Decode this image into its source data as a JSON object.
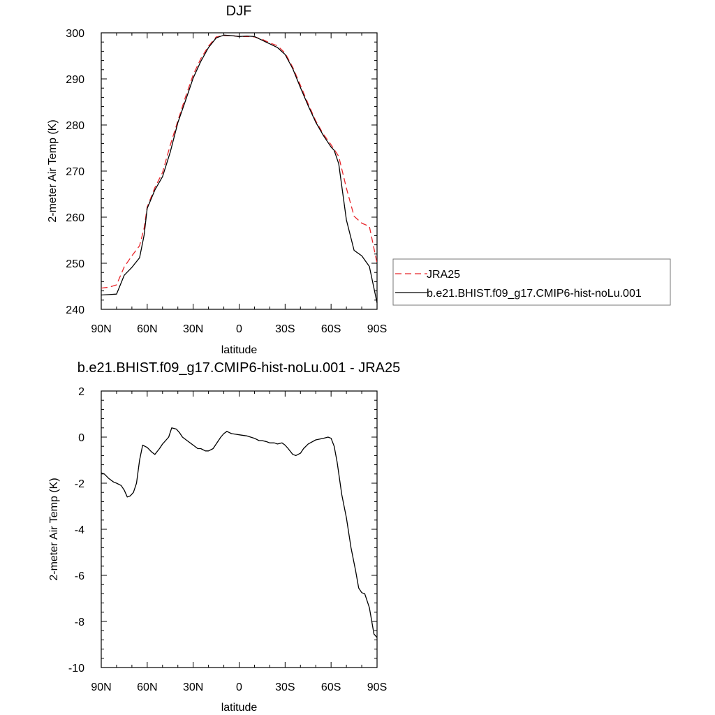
{
  "colors": {
    "reference": "#e8262b",
    "model": "#000000",
    "axis": "#000000"
  },
  "chart_data": [
    {
      "type": "line",
      "title": "DJF",
      "xlabel": "latitude",
      "ylabel": "2-meter Air Temp (K)",
      "xlim": [
        90,
        -90
      ],
      "ylim": [
        240,
        300
      ],
      "x_major_ticks": [
        90,
        60,
        30,
        0,
        -30,
        -60,
        -90
      ],
      "x_tick_labels": [
        "90N",
        "60N",
        "30N",
        "0",
        "30S",
        "60S",
        "90S"
      ],
      "y_major_ticks": [
        240,
        250,
        260,
        270,
        280,
        290,
        300
      ],
      "y_tick_labels": [
        "240",
        "250",
        "260",
        "270",
        "280",
        "290",
        "300"
      ],
      "legend_position": "right",
      "series": [
        {
          "name": "JRA25",
          "style": "dashed",
          "color": "#e8262b",
          "x": [
            90,
            85,
            80,
            75,
            70,
            65,
            62,
            60,
            55,
            50,
            45,
            40,
            35,
            30,
            25,
            20,
            15,
            10,
            5,
            0,
            -5,
            -10,
            -15,
            -20,
            -25,
            -30,
            -35,
            -40,
            -45,
            -50,
            -55,
            -60,
            -62,
            -65,
            -70,
            -75,
            -80,
            -85,
            -90
          ],
          "y": [
            244.6,
            244.8,
            245.3,
            249.2,
            251.6,
            253.8,
            257.6,
            262.2,
            266.4,
            269.7,
            275.6,
            280.9,
            286.1,
            290.9,
            294.4,
            297.1,
            299.1,
            299.4,
            299.4,
            299.2,
            299.2,
            299.1,
            298.6,
            297.8,
            297.2,
            295.6,
            292.5,
            288.6,
            284.6,
            280.9,
            278.0,
            275.7,
            274.7,
            273.2,
            266.3,
            260.2,
            258.7,
            258.0,
            250.0
          ]
        },
        {
          "name": "b.e21.BHIST.f09_g17.CMIP6-hist-noLu.001",
          "style": "solid",
          "color": "#000000",
          "x": [
            90,
            85,
            80,
            75,
            70,
            65,
            62,
            60,
            55,
            50,
            45,
            40,
            35,
            30,
            25,
            20,
            15,
            10,
            5,
            0,
            -5,
            -10,
            -15,
            -20,
            -25,
            -30,
            -35,
            -40,
            -45,
            -50,
            -55,
            -60,
            -62,
            -65,
            -70,
            -75,
            -80,
            -85,
            -90
          ],
          "y": [
            243.1,
            243.2,
            243.3,
            247.4,
            249.1,
            251.2,
            256.1,
            261.9,
            265.9,
            268.8,
            274.1,
            280.5,
            285.3,
            290.2,
            293.8,
            296.8,
            298.9,
            299.5,
            299.4,
            299.2,
            299.3,
            299.2,
            298.4,
            297.6,
            296.8,
            295.3,
            292.2,
            288.1,
            284.2,
            280.6,
            277.7,
            275.2,
            274.5,
            271.6,
            259.4,
            252.8,
            251.6,
            249.3,
            241.4
          ]
        }
      ]
    },
    {
      "type": "line",
      "title": "b.e21.BHIST.f09_g17.CMIP6-hist-noLu.001 - JRA25",
      "xlabel": "latitude",
      "ylabel": "2-meter Air Temp (K)",
      "xlim": [
        90,
        -90
      ],
      "ylim": [
        -10,
        2
      ],
      "x_major_ticks": [
        90,
        60,
        30,
        0,
        -30,
        -60,
        -90
      ],
      "x_tick_labels": [
        "90N",
        "60N",
        "30N",
        "0",
        "30S",
        "60S",
        "90S"
      ],
      "y_major_ticks": [
        -10,
        -8,
        -6,
        -4,
        -2,
        0,
        2
      ],
      "y_tick_labels": [
        "-10",
        "-8",
        "-6",
        "-4",
        "-2",
        "0",
        "2"
      ],
      "series": [
        {
          "style": "solid",
          "color": "#000000",
          "x": [
            90,
            88,
            85,
            82,
            80,
            77,
            75,
            73,
            71,
            69,
            67,
            65,
            63,
            60,
            57,
            55,
            52,
            50,
            46,
            44,
            41,
            39,
            37,
            34,
            30,
            27,
            25,
            22,
            20,
            17,
            15,
            12,
            10,
            8,
            5,
            2,
            0,
            -5,
            -10,
            -13,
            -15,
            -18,
            -20,
            -23,
            -25,
            -28,
            -30,
            -32,
            -35,
            -37,
            -40,
            -42,
            -45,
            -50,
            -55,
            -58,
            -60,
            -62,
            -64,
            -67,
            -70,
            -73,
            -76,
            -78,
            -80,
            -82,
            -85,
            -88,
            -90
          ],
          "y": [
            -1.55,
            -1.6,
            -1.8,
            -1.95,
            -2.0,
            -2.1,
            -2.3,
            -2.6,
            -2.55,
            -2.4,
            -2.0,
            -1.0,
            -0.35,
            -0.45,
            -0.65,
            -0.75,
            -0.5,
            -0.3,
            0.0,
            0.4,
            0.35,
            0.2,
            0.0,
            -0.15,
            -0.35,
            -0.5,
            -0.5,
            -0.6,
            -0.6,
            -0.5,
            -0.3,
            0.0,
            0.15,
            0.25,
            0.15,
            0.12,
            0.1,
            0.05,
            -0.05,
            -0.15,
            -0.15,
            -0.2,
            -0.25,
            -0.25,
            -0.3,
            -0.25,
            -0.35,
            -0.5,
            -0.75,
            -0.8,
            -0.7,
            -0.5,
            -0.3,
            -0.12,
            -0.05,
            0.0,
            -0.05,
            -0.4,
            -1.1,
            -2.5,
            -3.5,
            -4.8,
            -5.8,
            -6.55,
            -6.75,
            -6.8,
            -7.4,
            -8.55,
            -8.7
          ]
        }
      ]
    }
  ]
}
